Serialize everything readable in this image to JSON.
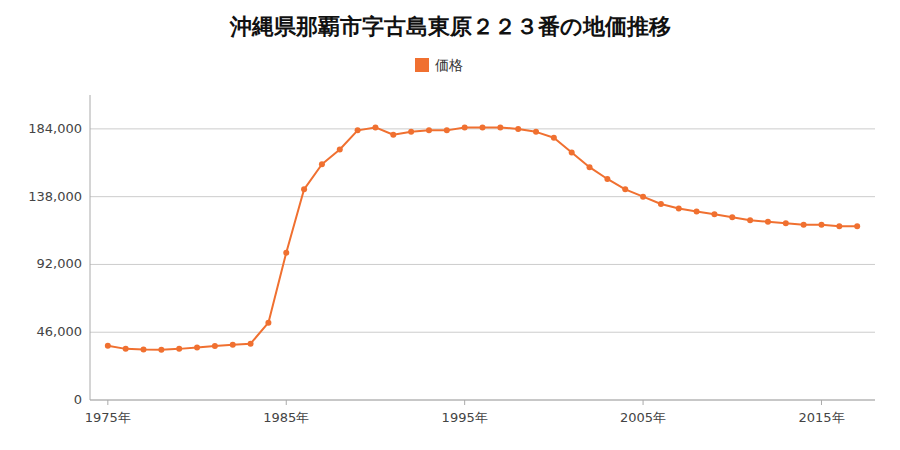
{
  "chart_data": {
    "type": "line",
    "title": "沖縄県那覇市字古島東原２２３番の地価推移",
    "x": [
      1975,
      1976,
      1977,
      1978,
      1979,
      1980,
      1981,
      1982,
      1983,
      1984,
      1985,
      1986,
      1987,
      1988,
      1989,
      1990,
      1991,
      1992,
      1993,
      1994,
      1995,
      1996,
      1997,
      1998,
      1999,
      2000,
      2001,
      2002,
      2003,
      2004,
      2005,
      2006,
      2007,
      2008,
      2009,
      2010,
      2011,
      2012,
      2013,
      2014,
      2015,
      2016,
      2017
    ],
    "series": [
      {
        "name": "価格",
        "color": "#f07030",
        "marker": "circle",
        "line_style": "solid",
        "values": [
          36800,
          34700,
          34200,
          34100,
          34700,
          35700,
          36700,
          37500,
          38200,
          52500,
          100000,
          143000,
          160000,
          170000,
          183000,
          185000,
          180000,
          182000,
          183000,
          183000,
          185000,
          185000,
          185000,
          184000,
          182000,
          178000,
          168000,
          158000,
          150000,
          143000,
          138000,
          133000,
          130000,
          128000,
          126000,
          124000,
          122000,
          121000,
          120000,
          119000,
          119000,
          118000,
          118000
        ]
      }
    ],
    "xlim": [
      1974,
      2018
    ],
    "ylim": [
      0,
      207000
    ],
    "xticks": [
      {
        "value": 1975,
        "label": "1975年"
      },
      {
        "value": 1985,
        "label": "1985年"
      },
      {
        "value": 1995,
        "label": "1995年"
      },
      {
        "value": 2005,
        "label": "2005年"
      },
      {
        "value": 2015,
        "label": "2015年"
      }
    ],
    "yticks": [
      0,
      {
        "value": 46000,
        "label": "46,000"
      },
      {
        "value": 92000,
        "label": "92,000"
      },
      {
        "value": 138000,
        "label": "138,000"
      },
      {
        "value": 184000,
        "label": "184,000"
      }
    ],
    "grid": true,
    "legend": "top"
  }
}
